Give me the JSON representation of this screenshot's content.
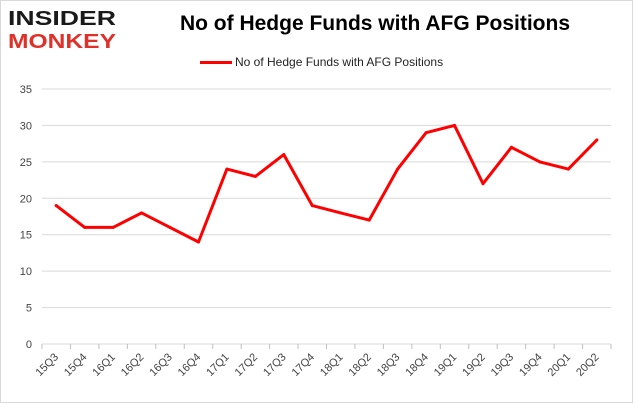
{
  "logo": {
    "line1": "INSIDER",
    "line2": "MONKEY"
  },
  "chart_data": {
    "type": "line",
    "title": "No of Hedge Funds with AFG Positions",
    "xlabel": "",
    "ylabel": "",
    "categories": [
      "15Q3",
      "15Q4",
      "16Q1",
      "16Q2",
      "16Q3",
      "16Q4",
      "17Q1",
      "17Q2",
      "17Q3",
      "17Q4",
      "18Q1",
      "18Q2",
      "18Q3",
      "18Q4",
      "19Q1",
      "19Q2",
      "19Q3",
      "19Q4",
      "20Q1",
      "20Q2"
    ],
    "series": [
      {
        "name": "No of Hedge Funds with AFG Positions",
        "values": [
          19,
          16,
          16,
          18,
          16,
          14,
          24,
          23,
          26,
          19,
          18,
          17,
          24,
          29,
          30,
          22,
          27,
          25,
          24,
          28
        ]
      }
    ],
    "ylim": [
      0,
      35
    ],
    "yticks": [
      0,
      5,
      10,
      15,
      20,
      25,
      30,
      35
    ],
    "grid": true,
    "legend": "top-center",
    "colors": {
      "series": "#ff0000",
      "grid": "#d9d9d9",
      "logo_dark": "#1a1a1a",
      "logo_red": "#e0302a"
    }
  }
}
